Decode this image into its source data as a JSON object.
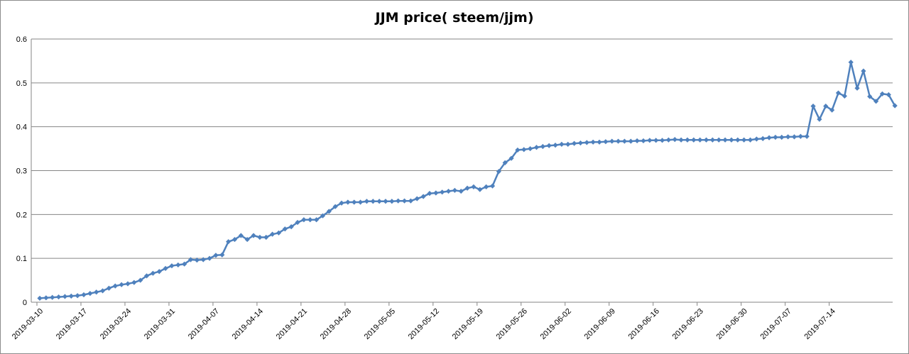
{
  "chart_data": {
    "type": "line",
    "title": "JJM price( steem/jjm)",
    "xlabel": "",
    "ylabel": "",
    "ylim": [
      0,
      0.6
    ],
    "y_ticks": [
      "0",
      "0.1",
      "0.2",
      "0.3",
      "0.4",
      "0.5",
      "0.6"
    ],
    "x_tick_labels": [
      "2019-03-10",
      "2019-03-17",
      "2019-03-24",
      "2019-03-31",
      "2019-04-07",
      "2019-04-14",
      "2019-04-21",
      "2019-04-28",
      "2019-05-05",
      "2019-05-12",
      "2019-05-19",
      "2019-05-26",
      "2019-06-02",
      "2019-06-09",
      "2019-06-16",
      "2019-06-23",
      "2019-06-30",
      "2019-07-07",
      "2019-07-14"
    ],
    "grid": "horizontal",
    "legend": "none",
    "series_color": "#4f81bd",
    "start_date": "2019-03-10",
    "series": [
      {
        "values": [
          0.009,
          0.01,
          0.011,
          0.012,
          0.013,
          0.014,
          0.015,
          0.017,
          0.02,
          0.023,
          0.026,
          0.032,
          0.037,
          0.04,
          0.042,
          0.045,
          0.05,
          0.06,
          0.066,
          0.07,
          0.077,
          0.083,
          0.085,
          0.087,
          0.097,
          0.096,
          0.097,
          0.1,
          0.107,
          0.108,
          0.138,
          0.143,
          0.152,
          0.143,
          0.152,
          0.148,
          0.148,
          0.155,
          0.158,
          0.167,
          0.172,
          0.182,
          0.188,
          0.188,
          0.188,
          0.197,
          0.207,
          0.218,
          0.226,
          0.228,
          0.228,
          0.228,
          0.23,
          0.23,
          0.23,
          0.23,
          0.23,
          0.231,
          0.231,
          0.231,
          0.236,
          0.241,
          0.248,
          0.249,
          0.251,
          0.253,
          0.255,
          0.253,
          0.26,
          0.263,
          0.257,
          0.263,
          0.265,
          0.298,
          0.318,
          0.328,
          0.347,
          0.348,
          0.35,
          0.353,
          0.355,
          0.357,
          0.358,
          0.36,
          0.36,
          0.362,
          0.363,
          0.364,
          0.365,
          0.365,
          0.366,
          0.367,
          0.367,
          0.367,
          0.367,
          0.368,
          0.368,
          0.369,
          0.369,
          0.369,
          0.37,
          0.371,
          0.37,
          0.37,
          0.37,
          0.37,
          0.37,
          0.37,
          0.37,
          0.37,
          0.37,
          0.37,
          0.37,
          0.37,
          0.372,
          0.373,
          0.375,
          0.376,
          0.376,
          0.377,
          0.377,
          0.378,
          0.378,
          0.447,
          0.417,
          0.447,
          0.438,
          0.477,
          0.47,
          0.547,
          0.488,
          0.527,
          0.469,
          0.458,
          0.475,
          0.473,
          0.448
        ]
      }
    ]
  }
}
